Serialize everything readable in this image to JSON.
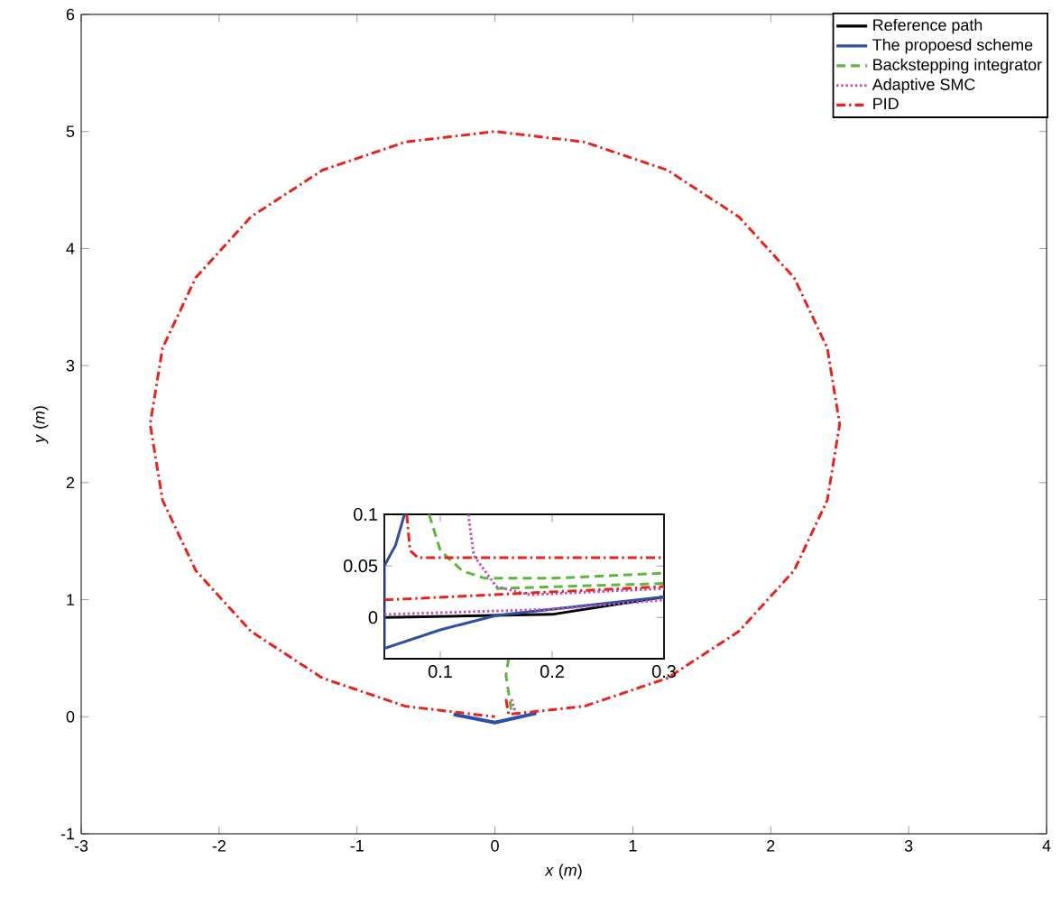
{
  "chart_data": [
    {
      "type": "line",
      "xlabel": "*x* (*m*)",
      "ylabel": "*y* (*m*)",
      "xlim": [
        -3,
        4
      ],
      "ylim": [
        -1,
        6
      ],
      "xticks": [
        -3,
        -2,
        -1,
        0,
        1,
        2,
        3,
        4
      ],
      "yticks": [
        -1,
        0,
        1,
        2,
        3,
        4,
        5,
        6
      ],
      "series": [
        {
          "color": "#2e4fa3",
          "line_style": "solid",
          "x": [
            -0.3,
            0,
            0.3
          ],
          "values": [
            0.02,
            -0.05,
            0.03
          ]
        },
        {
          "color": "#5cb83a",
          "line_style": "dashed",
          "x": [
            0.1,
            0.08,
            0.1,
            0.12
          ],
          "values": [
            0.5,
            0.35,
            0.2,
            0.04
          ]
        },
        {
          "color": "#c050b8",
          "line_style": "dotted",
          "x": [
            0.12,
            0.15
          ],
          "values": [
            0.15,
            0.03
          ]
        },
        {
          "color": "#e8231e",
          "line_style": "dashdot",
          "x": [
            0.08,
            0.1,
            0.65,
            1.25,
            1.77,
            2.17,
            2.41,
            2.5,
            2.41,
            2.17,
            1.77,
            1.25,
            0.65,
            0,
            -0.65,
            -1.25,
            -1.77,
            -2.17,
            -2.41,
            -2.5,
            -2.41,
            -2.17,
            -1.77,
            -1.25,
            -0.65,
            0
          ],
          "values": [
            0.15,
            0.02,
            0.09,
            0.33,
            0.73,
            1.25,
            1.85,
            2.5,
            3.15,
            3.75,
            4.27,
            4.67,
            4.91,
            5,
            4.91,
            4.67,
            4.27,
            3.75,
            3.15,
            2.5,
            1.85,
            1.25,
            0.73,
            0.33,
            0.09,
            0
          ]
        }
      ]
    },
    {
      "type": "line",
      "xlim": [
        0.05,
        0.3
      ],
      "ylim": [
        -0.04,
        0.1
      ],
      "xticks": [
        0.1,
        0.2,
        0.3
      ],
      "yticks": [
        0,
        0.05,
        0.1
      ],
      "legend": "top right",
      "series": [
        {
          "name": "Reference path",
          "color": "#000000",
          "line_style": "solid",
          "x": [
            0.05,
            0.2,
            0.3
          ],
          "values": [
            0,
            0.003,
            0.02
          ]
        },
        {
          "name": "The propoesd scheme",
          "color": "#2e4fa3",
          "line_style": "solid",
          "x": [
            0.05,
            0.05,
            0.06,
            0.068,
            null,
            0.05,
            0.1,
            0.15,
            0.2,
            0.25,
            0.3
          ],
          "values": [
            -0.03,
            0.05,
            0.07,
            0.1,
            null,
            -0.03,
            -0.012,
            0.002,
            0.008,
            0.014,
            0.02
          ]
        },
        {
          "name": "Backstepping integrator",
          "color": "#5cb83a",
          "line_style": "dashed",
          "x": [
            0.09,
            0.1,
            0.12,
            0.14,
            0.2,
            0.3,
            null,
            0.15,
            0.3
          ],
          "values": [
            0.1,
            0.065,
            0.045,
            0.038,
            0.038,
            0.043,
            null,
            0.028,
            0.033
          ]
        },
        {
          "name": "Adaptive SMC",
          "color": "#c050b8",
          "line_style": "dotted",
          "x": [
            0.125,
            0.13,
            0.15,
            0.18,
            0.3,
            null,
            0.05,
            0.2,
            0.3
          ],
          "values": [
            0.1,
            0.06,
            0.03,
            0.022,
            0.028,
            null,
            0.003,
            0.008,
            0.017
          ]
        },
        {
          "name": "PID",
          "color": "#e8231e",
          "line_style": "dashdot",
          "x": [
            0.07,
            0.073,
            0.08,
            0.09,
            0.3,
            null,
            0.05,
            0.3
          ],
          "values": [
            0.1,
            0.065,
            0.058,
            0.058,
            0.058,
            null,
            0.017,
            0.03
          ]
        }
      ]
    }
  ]
}
